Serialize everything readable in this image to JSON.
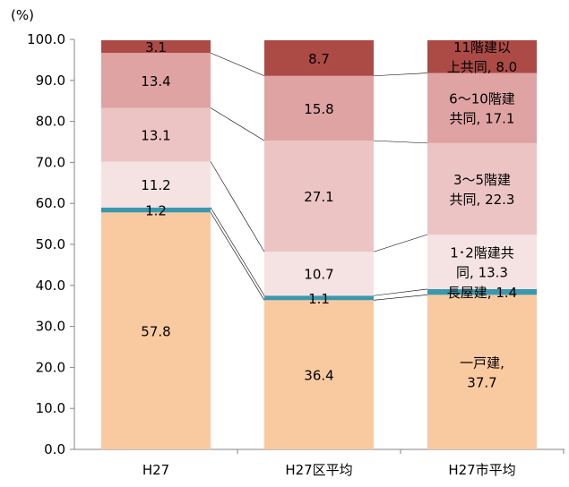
{
  "chart_data": {
    "type": "bar",
    "stacked": true,
    "percent_stacked": true,
    "y_unit_label": "(%)",
    "ylim": [
      0,
      100
    ],
    "ytick_labels": [
      "0.0",
      "10.0",
      "20.0",
      "30.0",
      "40.0",
      "50.0",
      "60.0",
      "70.0",
      "80.0",
      "90.0",
      "100.0"
    ],
    "categories": [
      "H27",
      "H27区平均",
      "H27市平均"
    ],
    "series": [
      {
        "name": "一戸建",
        "values": [
          57.8,
          36.4,
          37.7
        ],
        "color": "#f9c9a0"
      },
      {
        "name": "長屋建",
        "values": [
          1.2,
          1.1,
          1.4
        ],
        "color": "#3a98ad"
      },
      {
        "name": "1・2階建共同",
        "values": [
          11.2,
          10.7,
          13.3
        ],
        "color": "#f5e2e2"
      },
      {
        "name": "3～5階建共同",
        "values": [
          13.1,
          27.1,
          22.3
        ],
        "color": "#ecc4c4"
      },
      {
        "name": "6～10階建共同",
        "values": [
          13.4,
          15.8,
          17.1
        ],
        "color": "#dfa3a3"
      },
      {
        "name": "11階建以上共同",
        "values": [
          3.1,
          8.7,
          8.0
        ],
        "color": "#ac4a46"
      }
    ],
    "data_labels": [
      [
        "57.8",
        "1.2",
        "11.2",
        "13.1",
        "13.4",
        "3.1"
      ],
      [
        "36.4",
        "1.1",
        "10.7",
        "27.1",
        "15.8",
        "8.7"
      ],
      [
        [
          "一戸建,",
          "37.7"
        ],
        [
          "長屋建, 1.4"
        ],
        [
          "1･2階建共",
          "同, 13.3"
        ],
        [
          "3～5階建",
          "共同, 22.3"
        ],
        [
          "6～10階建",
          "共同, 17.1"
        ],
        [
          "11階建以",
          "上共同, 8.0"
        ]
      ]
    ],
    "series_lines": true,
    "grid": false,
    "legend": "none"
  }
}
